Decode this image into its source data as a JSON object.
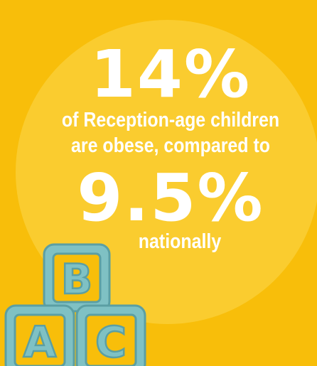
{
  "headline": {
    "local_percent": "14%",
    "line1": "of Reception-age children",
    "line2": "are obese, compared to",
    "national_percent": "9.5%",
    "line3": "nationally"
  },
  "colors": {
    "background": "#F8BE0A",
    "circle": "#FACC2F",
    "text": "#FFFFFF",
    "block_fill": "#7FC1C4",
    "block_outline": "#5B9FA3"
  },
  "blocks": {
    "letters": [
      "B",
      "A",
      "C"
    ]
  }
}
